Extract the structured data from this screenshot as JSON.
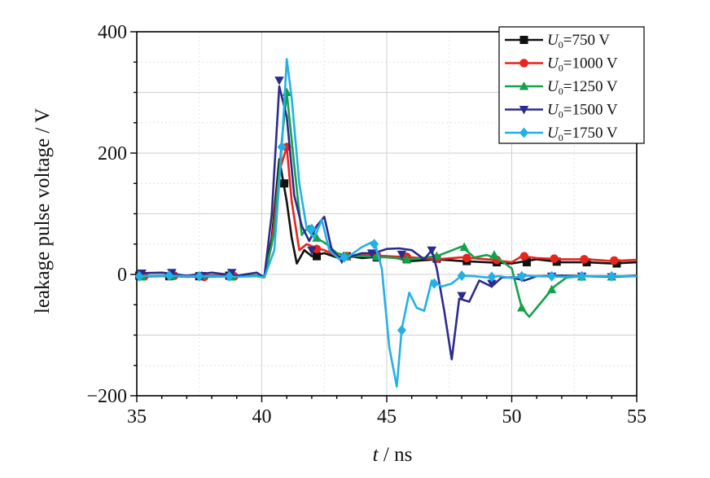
{
  "chart_data": {
    "type": "line",
    "xlabel_var": "t",
    "xlabel_unit": " / ns",
    "ylabel": "leakage pulse voltage / V",
    "xlim": [
      35,
      55
    ],
    "ylim": [
      -200,
      400
    ],
    "xticks": [
      35,
      40,
      45,
      50,
      55
    ],
    "yticks": [
      -200,
      0,
      200,
      400
    ],
    "grid": true,
    "legend_position": "top-right",
    "series": [
      {
        "name_var": "U",
        "name_sub": "0",
        "name_rest": "=750 V",
        "color": "#111111",
        "marker": "square",
        "x": [
          35,
          36,
          37,
          38,
          39,
          39.8,
          40.1,
          40.4,
          40.7,
          41.0,
          41.2,
          41.4,
          41.7,
          42.0,
          42.5,
          43,
          43.5,
          44,
          45,
          46,
          47,
          48,
          49,
          50,
          51,
          52,
          53,
          54,
          55
        ],
        "y": [
          -2,
          -3,
          -3,
          -2,
          -3,
          -2,
          -5,
          60,
          190,
          120,
          60,
          18,
          40,
          30,
          35,
          28,
          30,
          27,
          30,
          22,
          25,
          22,
          20,
          18,
          25,
          20,
          20,
          18,
          20
        ],
        "markers_x": [
          35.1,
          36.3,
          37.5,
          38.7,
          40.9,
          42.2,
          43.4,
          44.6,
          45.8,
          47.0,
          48.2,
          49.4,
          50.6,
          51.8,
          53.0,
          54.2
        ],
        "markers_y": [
          -2,
          -3,
          -3,
          -2,
          150,
          30,
          30,
          28,
          25,
          26,
          22,
          20,
          20,
          21,
          20,
          18
        ]
      },
      {
        "name_var": "U",
        "name_sub": "0",
        "name_rest": "=1000 V",
        "color": "#e8241d",
        "marker": "circle",
        "x": [
          35,
          36,
          37,
          38,
          39,
          39.8,
          40.1,
          40.4,
          40.7,
          41.0,
          41.2,
          41.5,
          41.8,
          42.1,
          42.5,
          43,
          43.5,
          44,
          45,
          46,
          47,
          48,
          49,
          50,
          50.4,
          51,
          52,
          53,
          54,
          55
        ],
        "y": [
          -3,
          -2,
          -4,
          -3,
          -2,
          -3,
          -5,
          50,
          170,
          210,
          120,
          40,
          50,
          45,
          40,
          30,
          28,
          32,
          30,
          28,
          25,
          28,
          25,
          20,
          30,
          27,
          25,
          25,
          22,
          24
        ],
        "markers_x": [
          35.3,
          36.5,
          37.7,
          38.9,
          41.0,
          42.2,
          43.4,
          44.6,
          45.8,
          47.0,
          48.2,
          49.4,
          50.5,
          51.7,
          52.9,
          54.1
        ],
        "markers_y": [
          -3,
          -2,
          -4,
          -3,
          210,
          42,
          30,
          31,
          29,
          26,
          27,
          24,
          30,
          26,
          25,
          23
        ]
      },
      {
        "name_var": "U",
        "name_sub": "0",
        "name_rest": "=1250 V",
        "color": "#14a14a",
        "marker": "triangle-up",
        "x": [
          35,
          36,
          37,
          38,
          39,
          39.8,
          40.1,
          40.5,
          40.8,
          41.0,
          41.3,
          41.6,
          41.9,
          42.2,
          42.6,
          43,
          43.5,
          44,
          45,
          46,
          47,
          47.5,
          48,
          48.5,
          49,
          49.5,
          50,
          50.4,
          50.7,
          51.2,
          51.7,
          52.2,
          53,
          54,
          55
        ],
        "y": [
          -4,
          -3,
          -2,
          -4,
          -3,
          -2,
          -5,
          70,
          220,
          300,
          180,
          65,
          80,
          60,
          50,
          35,
          30,
          30,
          28,
          25,
          30,
          38,
          46,
          28,
          32,
          25,
          10,
          -55,
          -70,
          -45,
          -20,
          -5,
          -3,
          -4,
          -3
        ],
        "markers_x": [
          35.2,
          36.4,
          37.6,
          38.8,
          41.0,
          42.2,
          43.4,
          44.6,
          45.8,
          47.0,
          48.1,
          49.3,
          50.4,
          51.6,
          52.8,
          54.0
        ],
        "markers_y": [
          -4,
          -3,
          -2,
          -4,
          300,
          60,
          30,
          29,
          25,
          30,
          45,
          32,
          -55,
          -25,
          -4,
          -4
        ]
      },
      {
        "name_var": "U",
        "name_sub": "0",
        "name_rest": "=1500 V",
        "color": "#2b2b8f",
        "marker": "triangle-down",
        "x": [
          35,
          36,
          37,
          38,
          39,
          39.8,
          40.1,
          40.4,
          40.7,
          41.0,
          41.3,
          41.6,
          41.9,
          42.2,
          42.5,
          42.8,
          43.2,
          43.6,
          44,
          44.5,
          45,
          45.5,
          46,
          46.5,
          46.8,
          47.0,
          47.3,
          47.6,
          47.9,
          48.3,
          48.7,
          49.2,
          49.6,
          50,
          50.5,
          51,
          52,
          53,
          54,
          55
        ],
        "y": [
          2,
          3,
          -2,
          3,
          -2,
          3,
          -5,
          100,
          310,
          260,
          130,
          80,
          55,
          80,
          95,
          40,
          25,
          30,
          35,
          35,
          42,
          43,
          40,
          25,
          40,
          10,
          -60,
          -140,
          -40,
          -45,
          -10,
          -20,
          -5,
          -5,
          -10,
          -3,
          -2,
          -3,
          -4,
          -2
        ],
        "markers_x": [
          35.2,
          36.4,
          37.6,
          38.8,
          40.7,
          42.0,
          43.2,
          44.4,
          45.6,
          46.8,
          48.0,
          49.2,
          50.4,
          51.6,
          52.8,
          54.0
        ],
        "markers_y": [
          2,
          3,
          -2,
          3,
          320,
          40,
          25,
          35,
          33,
          40,
          -35,
          -15,
          -5,
          -3,
          -3,
          -4
        ]
      },
      {
        "name_var": "U",
        "name_sub": "0",
        "name_rest": "=1750 V",
        "color": "#23b0e6",
        "marker": "diamond",
        "x": [
          35,
          36,
          37,
          38,
          39,
          39.8,
          40.1,
          40.5,
          40.8,
          41.0,
          41.2,
          41.5,
          41.8,
          42.1,
          42.4,
          42.7,
          43.1,
          43.5,
          44,
          44.5,
          44.8,
          45.1,
          45.4,
          45.6,
          45.9,
          46.2,
          46.5,
          46.8,
          47.2,
          47.6,
          48,
          48.5,
          49,
          49.5,
          50,
          50.5,
          51,
          52,
          53,
          54,
          55
        ],
        "y": [
          -3,
          -2,
          -3,
          -3,
          -4,
          -3,
          -5,
          40,
          210,
          355,
          290,
          150,
          75,
          60,
          90,
          40,
          25,
          30,
          45,
          55,
          10,
          -120,
          -185,
          -90,
          -30,
          -55,
          -60,
          -10,
          -20,
          -15,
          -2,
          -3,
          -5,
          -3,
          -6,
          -2,
          -3,
          -4,
          -3,
          -3,
          -3
        ],
        "markers_x": [
          35.1,
          36.3,
          37.5,
          38.7,
          40.8,
          42.0,
          43.3,
          44.5,
          45.6,
          46.9,
          48.0,
          49.2,
          50.4,
          51.6,
          52.8,
          54.0
        ],
        "markers_y": [
          -3,
          -2,
          -3,
          -3,
          210,
          75,
          28,
          50,
          -92,
          -15,
          -2,
          -4,
          -3,
          -3,
          -3,
          -3
        ]
      }
    ]
  }
}
